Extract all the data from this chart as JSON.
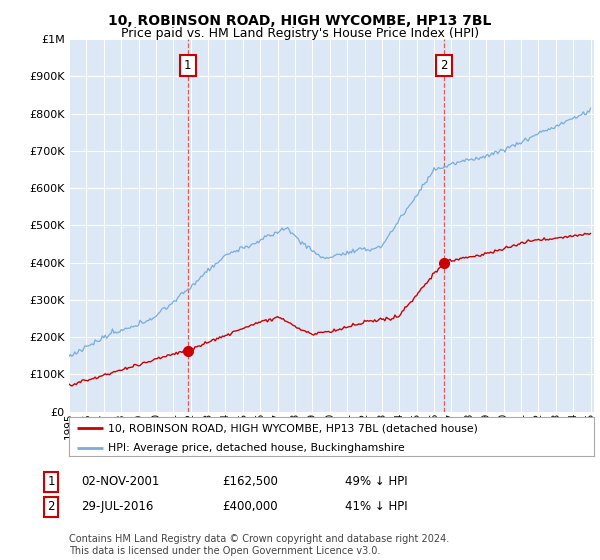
{
  "title": "10, ROBINSON ROAD, HIGH WYCOMBE, HP13 7BL",
  "subtitle": "Price paid vs. HM Land Registry’s House Price Index (HPI)",
  "subtitle2": "Price paid vs. HM Land Registry's House Price Index (HPI)",
  "title_fontsize": 10,
  "subtitle_fontsize": 9,
  "legend_line1": "10, ROBINSON ROAD, HIGH WYCOMBE, HP13 7BL (detached house)",
  "legend_line2": "HPI: Average price, detached house, Buckinghamshire",
  "sale1_date_num": 2001.84,
  "sale1_price": 162500,
  "sale1_label": "1",
  "sale1_date_str": "02-NOV-2001",
  "sale1_price_str": "£162,500",
  "sale1_pct": "49% ↓ HPI",
  "sale2_date_num": 2016.57,
  "sale2_price": 400000,
  "sale2_label": "2",
  "sale2_date_str": "29-JUL-2016",
  "sale2_price_str": "£400,000",
  "sale2_pct": "41% ↓ HPI",
  "ylim": [
    0,
    1000000
  ],
  "xlim": [
    1995.0,
    2025.2
  ],
  "red_color": "#cc0000",
  "blue_color": "#7aacdc",
  "vline_color": "#dd4444",
  "footer": "Contains HM Land Registry data © Crown copyright and database right 2024.\nThis data is licensed under the Open Government Licence v3.0.",
  "background_color": "#ffffff",
  "plot_bg_color": "#dce8f5"
}
